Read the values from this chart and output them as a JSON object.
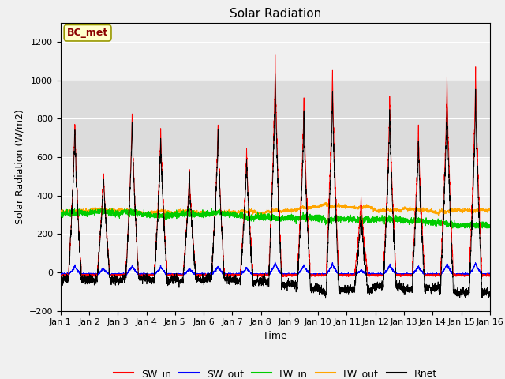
{
  "title": "Solar Radiation",
  "xlabel": "Time",
  "ylabel": "Solar Radiation (W/m2)",
  "ylim": [
    -200,
    1300
  ],
  "yticks": [
    -200,
    0,
    200,
    400,
    600,
    800,
    1000,
    1200
  ],
  "num_days": 15,
  "points_per_day": 288,
  "annotation_text": "BC_met",
  "annotation_color": "#8B0000",
  "annotation_bg": "#FFFFCC",
  "colors": {
    "SW_in": "#FF0000",
    "SW_out": "#0000FF",
    "LW_in": "#00CC00",
    "LW_out": "#FFA500",
    "Rnet": "#000000"
  },
  "legend_labels": [
    "SW_in",
    "SW_out",
    "LW_in",
    "LW_out",
    "Rnet"
  ],
  "background_color": "#F0F0F0",
  "grid_color": "#FFFFFF",
  "shaded_band": [
    600,
    1000
  ],
  "sw_in_peaks": [
    820,
    550,
    840,
    770,
    550,
    790,
    660,
    1140,
    930,
    1080,
    410,
    930,
    790,
    1040,
    1080
  ],
  "lw_in_range": [
    240,
    360
  ],
  "lw_out_range": [
    300,
    390
  ]
}
